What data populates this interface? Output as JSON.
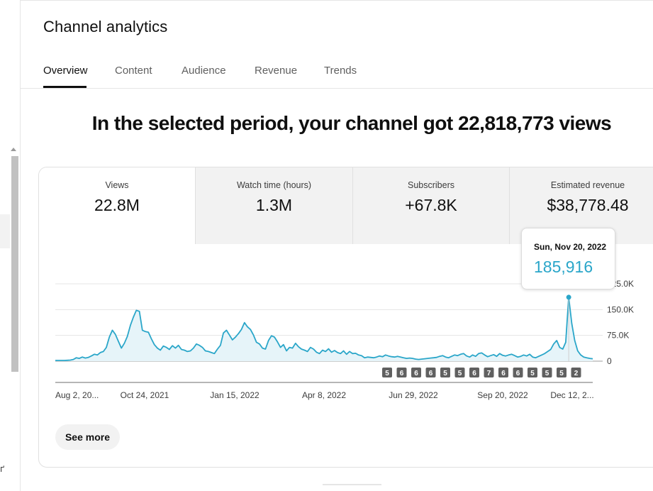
{
  "page_title": "Channel analytics",
  "tabs": [
    {
      "label": "Overview"
    },
    {
      "label": "Content"
    },
    {
      "label": "Audience"
    },
    {
      "label": "Revenue"
    },
    {
      "label": "Trends"
    }
  ],
  "active_tab": "Overview",
  "headline": "In the selected period, your channel got 22,818,773 views",
  "metrics": [
    {
      "label": "Views",
      "value": "22.8M"
    },
    {
      "label": "Watch time (hours)",
      "value": "1.3M"
    },
    {
      "label": "Subscribers",
      "value": "+67.8K"
    },
    {
      "label": "Estimated revenue",
      "value": "$38,778.48"
    }
  ],
  "tooltip": {
    "date": "Sun, Nov 20, 2022",
    "value": "185,916"
  },
  "see_more_label": "See more",
  "colors": {
    "accent": "#2aa6c9",
    "fill": "#e6f4f9",
    "badge": "#606060"
  },
  "chart_data": {
    "type": "area",
    "series": [
      {
        "values": [
          2000,
          2000,
          2000,
          2000,
          2500,
          3000,
          5000,
          10000,
          8000,
          12000,
          9000,
          11000,
          15000,
          20000,
          18000,
          25000,
          28000,
          40000,
          70000,
          90000,
          78000,
          58000,
          38000,
          52000,
          72000,
          104000,
          128000,
          148000,
          145000,
          90000,
          86000,
          84000,
          65000,
          48000,
          38000,
          32000,
          44000,
          40000,
          34000,
          45000,
          38000,
          46000,
          34000,
          32000,
          28000,
          30000,
          38000,
          50000,
          46000,
          40000,
          30000,
          28000,
          25000,
          22000,
          35000,
          46000,
          82000,
          90000,
          76000,
          62000,
          70000,
          80000,
          92000,
          112000,
          100000,
          92000,
          76000,
          55000,
          50000,
          38000,
          35000,
          60000,
          74000,
          70000,
          56000,
          40000,
          48000,
          30000,
          40000,
          38000,
          52000,
          42000,
          35000,
          32000,
          28000,
          40000,
          35000,
          26000,
          22000,
          32000,
          28000,
          36000,
          26000,
          31000,
          25000,
          22000,
          30000,
          20000,
          28000,
          22000,
          23000,
          18000,
          16000,
          10000,
          12000,
          11000,
          10000,
          12000,
          15000,
          13000,
          18000,
          15000,
          13000,
          12000,
          14000,
          12000,
          10000,
          8000,
          9000,
          8000,
          6000,
          5000,
          6000,
          7000,
          8000,
          9000,
          10000,
          11000,
          14000,
          16000,
          12000,
          10000,
          14000,
          18000,
          16000,
          20000,
          22000,
          15000,
          12000,
          18000,
          14000,
          22000,
          24000,
          18000,
          13000,
          16000,
          19000,
          14000,
          22000,
          17000,
          15000,
          18000,
          20000,
          16000,
          12000,
          14000,
          18000,
          15000,
          20000,
          12000,
          10000,
          14000,
          18000,
          22000,
          28000,
          34000,
          50000,
          60000,
          40000,
          35000,
          55000,
          185916,
          110000,
          60000,
          30000,
          18000,
          12000,
          10000,
          8000,
          7000
        ]
      }
    ],
    "highlight": {
      "date": "Sun, Nov 20, 2022",
      "value": 185916
    },
    "y_ticks": [
      "0",
      "75.0K",
      "150.0K",
      "225.0K"
    ],
    "y_tick_values": [
      0,
      75000,
      150000,
      225000
    ],
    "ylim": [
      0,
      225000
    ],
    "x_ticks": [
      "Aug 2, 20...",
      "Oct 24, 2021",
      "Jan 15, 2022",
      "Apr 8, 2022",
      "Jun 29, 2022",
      "Sep 20, 2022",
      "Dec 12, 2..."
    ],
    "badges": [
      "5",
      "6",
      "6",
      "6",
      "5",
      "5",
      "6",
      "7",
      "6",
      "6",
      "5",
      "5",
      "5",
      "2"
    ],
    "grid": true
  }
}
